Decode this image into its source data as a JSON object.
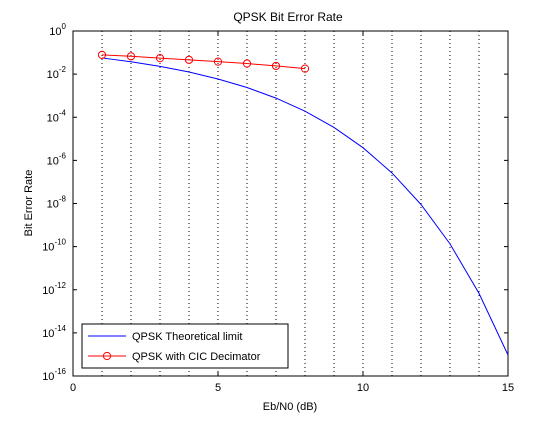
{
  "chart_data": {
    "type": "line",
    "title": "QPSK Bit Error Rate",
    "xlabel": "Eb/N0 (dB)",
    "ylabel": "Bit Error Rate",
    "xlim": [
      0,
      15
    ],
    "ylim_log10": [
      -16,
      0
    ],
    "y_scale": "log",
    "x_ticks": [
      0,
      5,
      10,
      15
    ],
    "x_tick_labels": [
      "0",
      "5",
      "10",
      "15"
    ],
    "y_ticks_exponents": [
      0,
      -2,
      -4,
      -6,
      -8,
      -10,
      -12,
      -14,
      -16
    ],
    "y_tick_base": "10",
    "grid": "vertical dotted at x = 1..15",
    "legend_position": "bottom-left",
    "series": [
      {
        "name": "QPSK Theoretical limit",
        "color": "#0000ff",
        "marker": "none",
        "x": [
          1,
          2,
          3,
          4,
          5,
          6,
          7,
          8,
          9,
          10,
          11,
          12,
          13,
          14,
          15
        ],
        "y": [
          0.0563,
          0.0375,
          0.0229,
          0.0125,
          0.00595,
          0.00239,
          0.000773,
          0.000191,
          3.36e-05,
          3.87e-06,
          2.61e-07,
          9e-09,
          1.34e-10,
          6.8e-13,
          9.4e-16
        ]
      },
      {
        "name": "QPSK with CIC Decimator",
        "color": "#ff0000",
        "marker": "o",
        "x": [
          1,
          2,
          3,
          4,
          5,
          6,
          7,
          8
        ],
        "y": [
          0.078,
          0.067,
          0.055,
          0.046,
          0.038,
          0.031,
          0.024,
          0.018
        ]
      }
    ]
  }
}
